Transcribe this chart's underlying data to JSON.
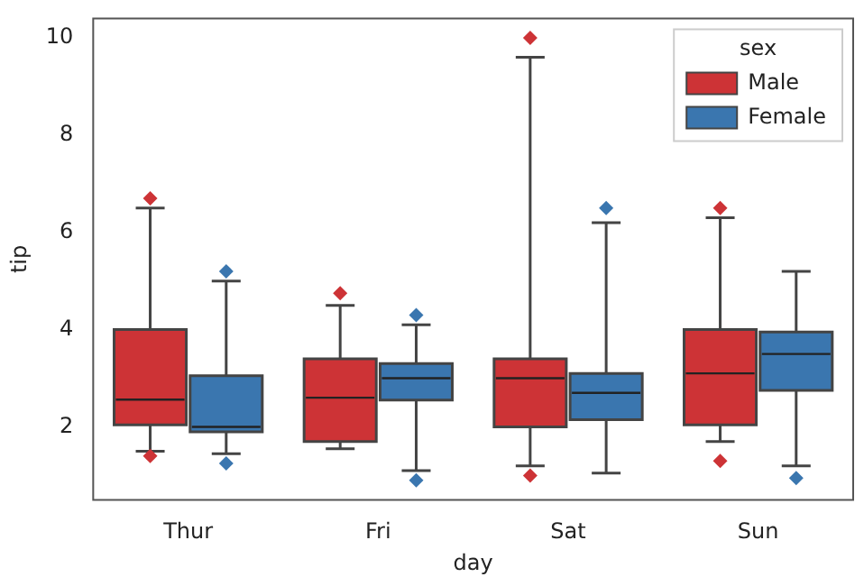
{
  "chart_data": {
    "type": "box",
    "xlabel": "day",
    "ylabel": "tip",
    "legend_title": "sex",
    "legend": "top right",
    "grid": false,
    "categories": [
      "Thur",
      "Fri",
      "Sat",
      "Sun"
    ],
    "ylim": [
      0.5,
      10.4
    ],
    "yticks": [
      2,
      4,
      6,
      8,
      10
    ],
    "series": [
      {
        "name": "Male",
        "color": "#cd3336",
        "boxes": [
          {
            "low": 1.5,
            "q1": 2.04,
            "median": 2.56,
            "q3": 4.0,
            "high": 6.5,
            "outliers": [
              6.7,
              1.4
            ]
          },
          {
            "low": 1.55,
            "q1": 1.7,
            "median": 2.6,
            "q3": 3.4,
            "high": 4.5,
            "outliers": [
              4.75
            ]
          },
          {
            "low": 1.2,
            "q1": 2.0,
            "median": 3.0,
            "q3": 3.4,
            "high": 9.6,
            "outliers": [
              10.0,
              1.0
            ]
          },
          {
            "low": 1.7,
            "q1": 2.04,
            "median": 3.1,
            "q3": 4.0,
            "high": 6.3,
            "outliers": [
              6.5,
              1.3
            ]
          }
        ]
      },
      {
        "name": "Female",
        "color": "#3a76af",
        "boxes": [
          {
            "low": 1.45,
            "q1": 1.9,
            "median": 2.0,
            "q3": 3.05,
            "high": 5.0,
            "outliers": [
              5.2,
              1.25
            ]
          },
          {
            "low": 1.1,
            "q1": 2.55,
            "median": 3.0,
            "q3": 3.3,
            "high": 4.1,
            "outliers": [
              4.3,
              0.9
            ]
          },
          {
            "low": 1.05,
            "q1": 2.15,
            "median": 2.7,
            "q3": 3.1,
            "high": 6.2,
            "outliers": [
              6.5
            ]
          },
          {
            "low": 1.2,
            "q1": 2.75,
            "median": 3.5,
            "q3": 3.95,
            "high": 5.2,
            "outliers": [
              0.95
            ]
          }
        ]
      }
    ]
  }
}
